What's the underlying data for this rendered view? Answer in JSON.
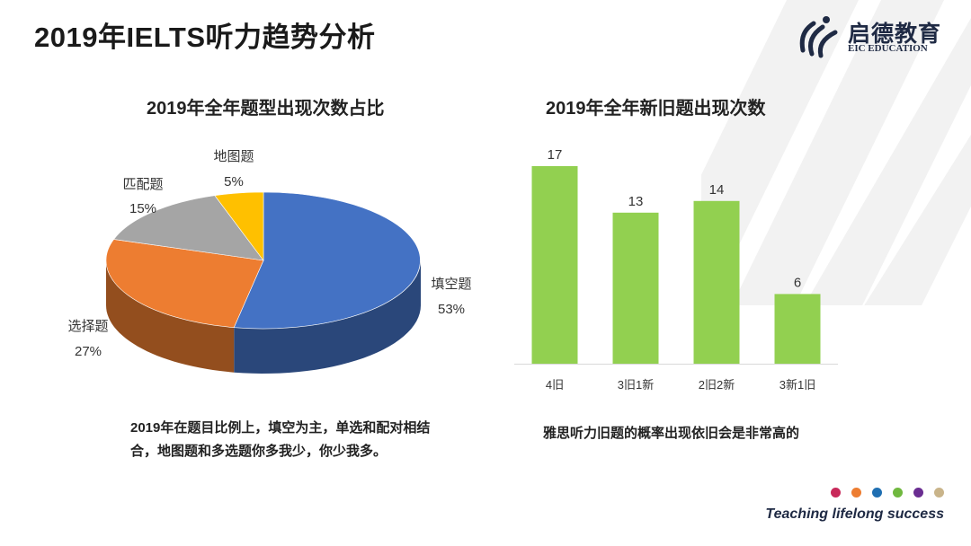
{
  "slide": {
    "title": "2019年IELTS听力趋势分析",
    "caption_left": "2019年在题目比例上，填空为主，单选和配对相结合，地图题和多选题你多我少，你少我多。",
    "caption_right": "雅思听力旧题的概率出现依旧会是非常高的",
    "tagline": "Teaching lifelong success",
    "dot_colors": [
      "#c8295a",
      "#ed7d31",
      "#1f6fb2",
      "#70b83f",
      "#6a2d91",
      "#c9b48a"
    ]
  },
  "logo": {
    "name_cn": "启德教育",
    "name_en": "EIC EDUCATION",
    "icon": "eic-logo-icon"
  },
  "chart_data": [
    {
      "type": "pie",
      "title": "2019年全年题型出现次数占比",
      "categories": [
        "填空题",
        "选择题",
        "匹配题",
        "地图题"
      ],
      "values": [
        53,
        27,
        15,
        5
      ],
      "labels": [
        "53%",
        "27%",
        "15%",
        "5%"
      ],
      "colors": [
        "#4472c4",
        "#ed7d31",
        "#a5a5a5",
        "#ffc000"
      ],
      "style": "3d"
    },
    {
      "type": "bar",
      "title": "2019年全年新旧题出现次数",
      "categories": [
        "4旧",
        "3旧1新",
        "2旧2新",
        "3新1旧"
      ],
      "values": [
        17,
        13,
        14,
        6
      ],
      "color": "#92d050",
      "ylim": [
        0,
        17
      ]
    }
  ]
}
